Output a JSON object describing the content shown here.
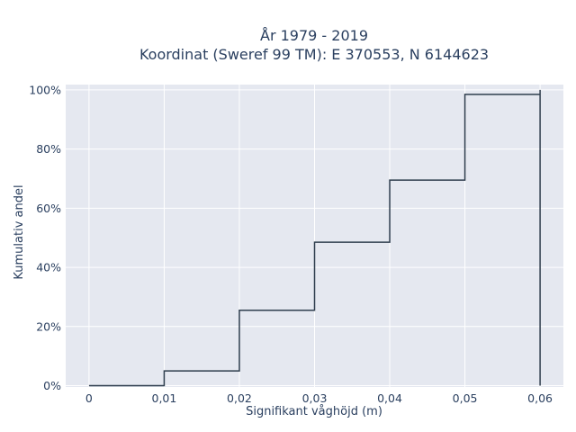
{
  "chart_data": {
    "type": "line",
    "line_shape": "step",
    "title_line1": "År 1979 - 2019",
    "title_line2": "Koordinat (Sweref 99 TM): E 370553, N 6144623",
    "xlabel": "Signifikant våghöjd (m)",
    "ylabel": "Kumulativ andel",
    "x_ticks": [
      "0",
      "0,01",
      "0,02",
      "0,03",
      "0,04",
      "0,05",
      "0,06"
    ],
    "x_tick_values": [
      0,
      0.01,
      0.02,
      0.03,
      0.04,
      0.05,
      0.06
    ],
    "y_ticks": [
      "0%",
      "20%",
      "40%",
      "60%",
      "80%",
      "100%"
    ],
    "y_tick_values": [
      0,
      0.2,
      0.4,
      0.6,
      0.8,
      1.0
    ],
    "xlim": [
      -0.0031,
      0.0631
    ],
    "ylim": [
      -0.0045,
      1.018
    ],
    "grid": true,
    "background_color": "#e5e8f0",
    "line_color": "#2f3e4e",
    "series": [
      {
        "x": [
          0,
          0.01,
          0.02,
          0.03,
          0.04,
          0.05,
          0.06,
          0.06
        ],
        "y": [
          0.0,
          0.05,
          0.255,
          0.485,
          0.695,
          0.985,
          1.0,
          0.0
        ]
      }
    ]
  }
}
